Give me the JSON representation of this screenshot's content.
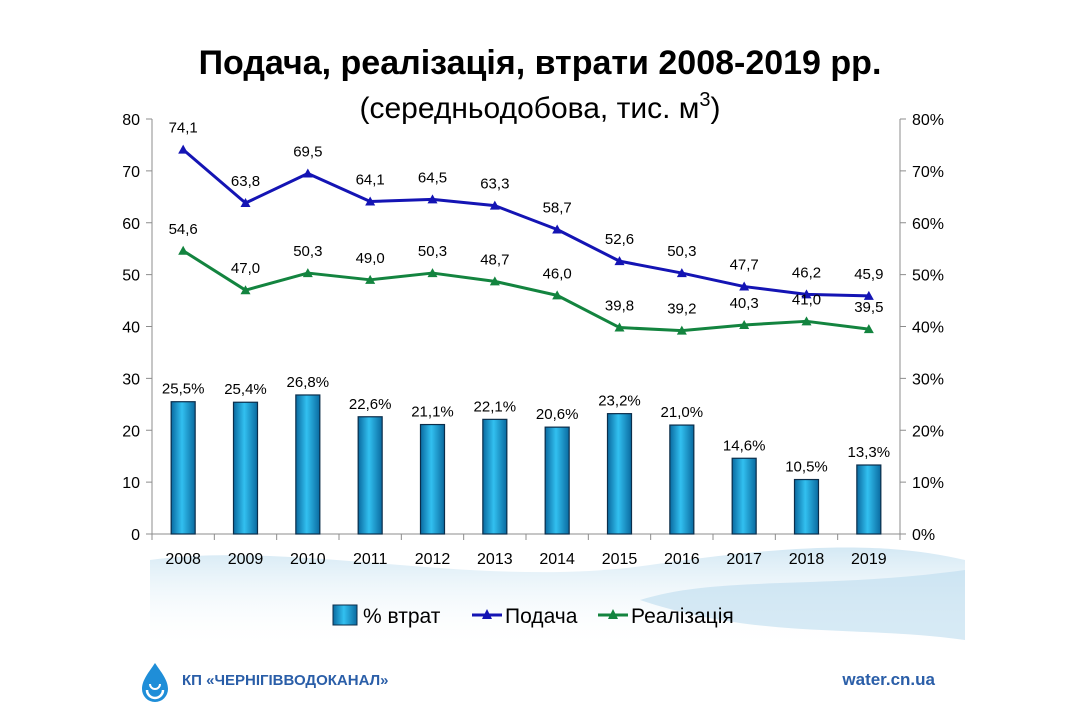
{
  "title": "Подача, реалізація, втрати 2008-2019 рр.",
  "subtitle_pre": "(середньодобова,  тис. м",
  "subtitle_sup": "3",
  "subtitle_post": ")",
  "footer": {
    "org": "КП «ЧЕРНІГІВВОДОКАНАЛ»",
    "site": "water.cn.ua"
  },
  "colors": {
    "bar_fill": "#1e9fd4",
    "bar_stroke": "#0b2d4a",
    "podacha": "#1414b4",
    "realizatsiia": "#13843f",
    "logo": "#1f8ed8"
  },
  "chart_data": {
    "type": "bar",
    "categories": [
      "2008",
      "2009",
      "2010",
      "2011",
      "2012",
      "2013",
      "2014",
      "2015",
      "2016",
      "2017",
      "2018",
      "2019"
    ],
    "y_left": {
      "min": 0,
      "max": 80,
      "ticks": [
        "0",
        "10",
        "20",
        "30",
        "40",
        "50",
        "60",
        "70",
        "80"
      ]
    },
    "y_right": {
      "min": 0,
      "max": 80,
      "ticks": [
        "0%",
        "10%",
        "20%",
        "30%",
        "40%",
        "50%",
        "60%",
        "70%",
        "80%"
      ]
    },
    "legend_position": "bottom",
    "series": [
      {
        "name": "% втрат",
        "kind": "bar",
        "axis": "right",
        "values": [
          25.5,
          25.4,
          26.8,
          22.6,
          21.1,
          22.1,
          20.6,
          23.2,
          21.0,
          14.6,
          10.5,
          13.3
        ],
        "labels": [
          "25,5%",
          "25,4%",
          "26,8%",
          "22,6%",
          "21,1%",
          "22,1%",
          "20,6%",
          "23,2%",
          "21,0%",
          "14,6%",
          "10,5%",
          "13,3%"
        ]
      },
      {
        "name": "Подача",
        "kind": "line",
        "axis": "left",
        "values": [
          74.1,
          63.8,
          69.5,
          64.1,
          64.5,
          63.3,
          58.7,
          52.6,
          50.3,
          47.7,
          46.2,
          45.9
        ],
        "labels": [
          "74,1",
          "63,8",
          "69,5",
          "64,1",
          "64,5",
          "63,3",
          "58,7",
          "52,6",
          "50,3",
          "47,7",
          "46,2",
          "45,9"
        ]
      },
      {
        "name": "Реалізація",
        "kind": "line",
        "axis": "left",
        "values": [
          54.6,
          47.0,
          50.3,
          49.0,
          50.3,
          48.7,
          46.0,
          39.8,
          39.2,
          40.3,
          41.0,
          39.5
        ],
        "labels": [
          "54,6",
          "47,0",
          "50,3",
          "49,0",
          "50,3",
          "48,7",
          "46,0",
          "39,8",
          "39,2",
          "40,3",
          "41,0",
          "39,5"
        ]
      }
    ]
  }
}
